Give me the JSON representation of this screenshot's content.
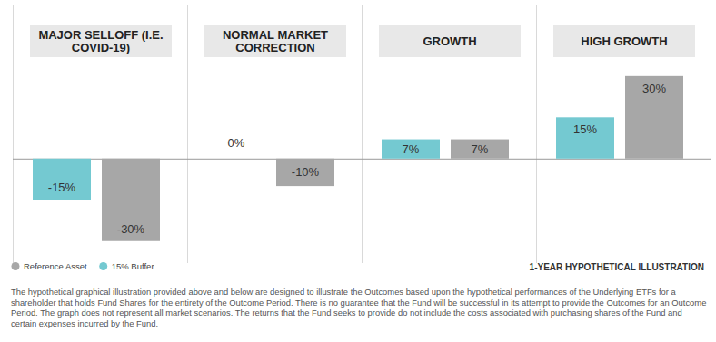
{
  "chart_data": {
    "type": "bar",
    "subtitle": "1-YEAR HYPOTHETICAL ILLUSTRATION",
    "footnote": "The hypothetical graphical illustration provided above and below are designed to illustrate the Outcomes based upon  the hypothetical performances of the Underlying ETFs for a shareholder that holds Fund Shares for the entirety of the Outcome Period.  There is no guarantee that the Fund will be successful in its attempt to provide the Outcomes for an Outcome Period.  The graph does not represent all market scenarios. The returns that the Fund seeks to provide do not include the costs associated with purchasing shares of the Fund and certain expenses incurred by the Fund.",
    "categories": [
      "MAJOR SELLOFF (I.E. COVID-19)",
      "NORMAL MARKET CORRECTION",
      "GROWTH",
      "HIGH GROWTH"
    ],
    "series": [
      {
        "name": "15% Buffer",
        "color": "#74c9d1",
        "values": [
          -15,
          0,
          7,
          15
        ],
        "value_labels": [
          "-15%",
          "0%",
          "7%",
          "15%"
        ]
      },
      {
        "name": "Reference Asset",
        "color": "#a7a7a7",
        "values": [
          -30,
          -10,
          7,
          30
        ],
        "value_labels": [
          "-30%",
          "-10%",
          "7%",
          "30%"
        ]
      }
    ],
    "ylim": [
      -38,
      56
    ],
    "yticks": [
      0
    ],
    "tick_labels": false,
    "data_labels": true,
    "legend": "bottom-left"
  }
}
